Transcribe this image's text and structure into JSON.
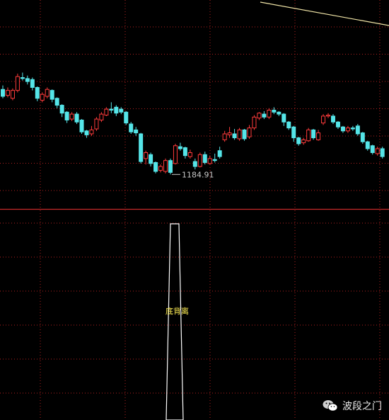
{
  "chart_data": [
    {
      "type": "candlestick",
      "grid": true,
      "colors": {
        "up": "#ff3b3b",
        "down": "#55e5e8",
        "grid": "#b02020",
        "background": "#000000",
        "trendline": "#f2e6a8"
      },
      "price_range": [
        1150,
        1340
      ],
      "low_annotation": {
        "label": "1184.91",
        "value": 1184.91
      },
      "candles": [
        {
          "o": 1271,
          "c": 1264,
          "h": 1275,
          "l": 1262
        },
        {
          "o": 1265,
          "c": 1270,
          "h": 1273,
          "l": 1263
        },
        {
          "o": 1262,
          "c": 1270,
          "h": 1272,
          "l": 1260
        },
        {
          "o": 1270,
          "c": 1284,
          "h": 1287,
          "l": 1268
        },
        {
          "o": 1283,
          "c": 1282,
          "h": 1288,
          "l": 1280
        },
        {
          "o": 1282,
          "c": 1279,
          "h": 1285,
          "l": 1276
        },
        {
          "o": 1281,
          "c": 1273,
          "h": 1283,
          "l": 1270
        },
        {
          "o": 1273,
          "c": 1262,
          "h": 1274,
          "l": 1259
        },
        {
          "o": 1260,
          "c": 1266,
          "h": 1268,
          "l": 1258
        },
        {
          "o": 1264,
          "c": 1271,
          "h": 1273,
          "l": 1262
        },
        {
          "o": 1270,
          "c": 1261,
          "h": 1271,
          "l": 1258
        },
        {
          "o": 1262,
          "c": 1255,
          "h": 1263,
          "l": 1252
        },
        {
          "o": 1255,
          "c": 1247,
          "h": 1256,
          "l": 1243
        },
        {
          "o": 1248,
          "c": 1240,
          "h": 1249,
          "l": 1237
        },
        {
          "o": 1241,
          "c": 1246,
          "h": 1248,
          "l": 1239
        },
        {
          "o": 1246,
          "c": 1238,
          "h": 1248,
          "l": 1236
        },
        {
          "o": 1240,
          "c": 1228,
          "h": 1241,
          "l": 1226
        },
        {
          "o": 1229,
          "c": 1225,
          "h": 1230,
          "l": 1222
        },
        {
          "o": 1226,
          "c": 1230,
          "h": 1234,
          "l": 1224
        },
        {
          "o": 1231,
          "c": 1241,
          "h": 1243,
          "l": 1229
        },
        {
          "o": 1240,
          "c": 1246,
          "h": 1248,
          "l": 1238
        },
        {
          "o": 1245,
          "c": 1251,
          "h": 1253,
          "l": 1244
        },
        {
          "o": 1251,
          "c": 1250,
          "h": 1258,
          "l": 1247
        },
        {
          "o": 1253,
          "c": 1247,
          "h": 1255,
          "l": 1244
        },
        {
          "o": 1251,
          "c": 1248,
          "h": 1253,
          "l": 1246
        },
        {
          "o": 1248,
          "c": 1237,
          "h": 1249,
          "l": 1235
        },
        {
          "o": 1236,
          "c": 1228,
          "h": 1238,
          "l": 1226
        },
        {
          "o": 1230,
          "c": 1227,
          "h": 1233,
          "l": 1224
        },
        {
          "o": 1226,
          "c": 1198,
          "h": 1227,
          "l": 1196
        },
        {
          "o": 1201,
          "c": 1207,
          "h": 1209,
          "l": 1195
        },
        {
          "o": 1205,
          "c": 1196,
          "h": 1207,
          "l": 1193
        },
        {
          "o": 1197,
          "c": 1188,
          "h": 1198,
          "l": 1186
        },
        {
          "o": 1189,
          "c": 1193,
          "h": 1195,
          "l": 1187
        },
        {
          "o": 1188,
          "c": 1199,
          "h": 1201,
          "l": 1186
        },
        {
          "o": 1199,
          "c": 1187,
          "h": 1201,
          "l": 1184.91
        },
        {
          "o": 1196,
          "c": 1214,
          "h": 1216,
          "l": 1195
        },
        {
          "o": 1213,
          "c": 1211,
          "h": 1217,
          "l": 1209
        },
        {
          "o": 1212,
          "c": 1204,
          "h": 1213,
          "l": 1201
        },
        {
          "o": 1203,
          "c": 1207,
          "h": 1210,
          "l": 1201
        },
        {
          "o": 1198,
          "c": 1193,
          "h": 1201,
          "l": 1190
        },
        {
          "o": 1193,
          "c": 1205,
          "h": 1207,
          "l": 1192
        },
        {
          "o": 1205,
          "c": 1197,
          "h": 1208,
          "l": 1195
        },
        {
          "o": 1196,
          "c": 1201,
          "h": 1204,
          "l": 1195
        },
        {
          "o": 1200,
          "c": 1199,
          "h": 1206,
          "l": 1197
        },
        {
          "o": 1209,
          "c": 1203,
          "h": 1213,
          "l": 1201
        },
        {
          "o": 1220,
          "c": 1226,
          "h": 1229,
          "l": 1218
        },
        {
          "o": 1225,
          "c": 1227,
          "h": 1233,
          "l": 1222
        },
        {
          "o": 1226,
          "c": 1222,
          "h": 1231,
          "l": 1220
        },
        {
          "o": 1221,
          "c": 1230,
          "h": 1232,
          "l": 1219
        },
        {
          "o": 1230,
          "c": 1221,
          "h": 1231,
          "l": 1219
        },
        {
          "o": 1223,
          "c": 1232,
          "h": 1235,
          "l": 1221
        },
        {
          "o": 1232,
          "c": 1243,
          "h": 1245,
          "l": 1230
        },
        {
          "o": 1242,
          "c": 1247,
          "h": 1248,
          "l": 1240
        },
        {
          "o": 1246,
          "c": 1243,
          "h": 1249,
          "l": 1241
        },
        {
          "o": 1243,
          "c": 1250,
          "h": 1252,
          "l": 1241
        },
        {
          "o": 1250,
          "c": 1248,
          "h": 1253,
          "l": 1246
        },
        {
          "o": 1248,
          "c": 1246,
          "h": 1249,
          "l": 1244
        },
        {
          "o": 1246,
          "c": 1238,
          "h": 1247,
          "l": 1234
        },
        {
          "o": 1238,
          "c": 1232,
          "h": 1239,
          "l": 1230
        },
        {
          "o": 1233,
          "c": 1222,
          "h": 1234,
          "l": 1218
        },
        {
          "o": 1222,
          "c": 1216,
          "h": 1223,
          "l": 1214
        },
        {
          "o": 1217,
          "c": 1220,
          "h": 1222,
          "l": 1215
        },
        {
          "o": 1219,
          "c": 1230,
          "h": 1232,
          "l": 1218
        },
        {
          "o": 1230,
          "c": 1222,
          "h": 1231,
          "l": 1220
        },
        {
          "o": 1220,
          "c": 1227,
          "h": 1230,
          "l": 1219
        },
        {
          "o": 1237,
          "c": 1244,
          "h": 1246,
          "l": 1235
        },
        {
          "o": 1244,
          "c": 1245,
          "h": 1247,
          "l": 1242
        },
        {
          "o": 1244,
          "c": 1238,
          "h": 1246,
          "l": 1236
        },
        {
          "o": 1238,
          "c": 1233,
          "h": 1239,
          "l": 1231
        },
        {
          "o": 1233,
          "c": 1229,
          "h": 1234,
          "l": 1227
        },
        {
          "o": 1229,
          "c": 1232,
          "h": 1234,
          "l": 1227
        },
        {
          "o": 1232,
          "c": 1231,
          "h": 1234,
          "l": 1229
        },
        {
          "o": 1234,
          "c": 1226,
          "h": 1236,
          "l": 1224
        },
        {
          "o": 1227,
          "c": 1218,
          "h": 1228,
          "l": 1216
        },
        {
          "o": 1218,
          "c": 1211,
          "h": 1219,
          "l": 1209
        },
        {
          "o": 1214,
          "c": 1207,
          "h": 1215,
          "l": 1205
        },
        {
          "o": 1206,
          "c": 1211,
          "h": 1213,
          "l": 1204
        },
        {
          "o": 1211,
          "c": 1203,
          "h": 1213,
          "l": 1201
        }
      ]
    },
    {
      "type": "bar",
      "annotation": "底背离",
      "signal_bar_index": 34,
      "colors": {
        "bar": "#ffffff",
        "grid": "#b02020"
      }
    }
  ],
  "watermark": {
    "icon": "wechat-icon",
    "text": "波段之门"
  }
}
